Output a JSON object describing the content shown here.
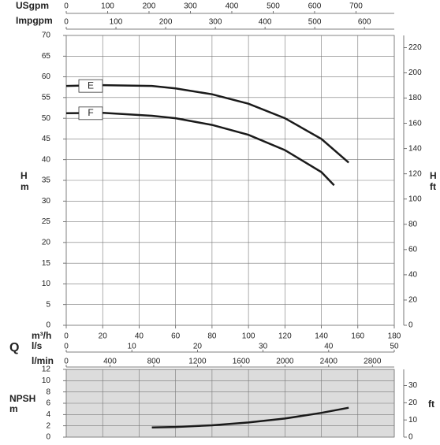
{
  "chart_data": [
    {
      "type": "line",
      "quantity_label": "Q",
      "x_label": "m³/h",
      "ylabel": "H",
      "yunit": "m",
      "y2label": "H",
      "y2unit": "ft",
      "xlim": [
        0,
        180
      ],
      "xticks": [
        0,
        20,
        40,
        60,
        80,
        100,
        120,
        140,
        160,
        180
      ],
      "ylim": [
        0,
        70
      ],
      "yticks": [
        0,
        5,
        10,
        15,
        20,
        25,
        30,
        35,
        40,
        45,
        50,
        55,
        60,
        65,
        70
      ],
      "y2lim": [
        0,
        229.66
      ],
      "y2ticks": [
        0,
        20,
        40,
        60,
        80,
        100,
        120,
        140,
        160,
        180,
        200,
        220
      ],
      "grid": true,
      "extra_x_axes": [
        {
          "label": "USgpm",
          "xlim": [
            0,
            792.5
          ],
          "xticks": [
            0,
            100,
            200,
            300,
            400,
            500,
            600,
            700
          ]
        },
        {
          "label": "Impgpm",
          "xlim": [
            0,
            660
          ],
          "xticks": [
            0,
            100,
            200,
            300,
            400,
            500,
            600
          ]
        },
        {
          "label": "l/s",
          "xlim": [
            0,
            50
          ],
          "xticks": [
            0,
            10,
            20,
            30,
            40,
            50
          ]
        },
        {
          "label": "l/min",
          "xlim": [
            0,
            3000
          ],
          "xticks": [
            0,
            400,
            800,
            1200,
            1600,
            2000,
            2400,
            2800
          ]
        }
      ],
      "series": [
        {
          "name": "E",
          "color": "#1a1a1a",
          "x": [
            0,
            20,
            47,
            60,
            80,
            100,
            120,
            140,
            155
          ],
          "values": [
            57.8,
            58,
            57.8,
            57.2,
            55.8,
            53.5,
            50,
            45,
            39.3
          ]
        },
        {
          "name": "F",
          "color": "#1a1a1a",
          "x": [
            0,
            20,
            47,
            60,
            80,
            100,
            120,
            140,
            147
          ],
          "values": [
            51.2,
            51.3,
            50.6,
            50,
            48.4,
            46,
            42.3,
            37,
            33.8
          ]
        }
      ]
    },
    {
      "type": "line",
      "ylabel": "NPSH",
      "yunit": "m",
      "y2unit": "ft",
      "xlim": [
        0,
        180
      ],
      "xticks": [
        0,
        20,
        40,
        60,
        80,
        100,
        120,
        140,
        160,
        180
      ],
      "ylim": [
        0,
        12
      ],
      "yticks": [
        0,
        2,
        4,
        6,
        8,
        10,
        12
      ],
      "y2lim": [
        0,
        39.37
      ],
      "y2ticks": [
        0,
        10,
        20,
        30
      ],
      "grid": true,
      "background": "#dcdcdc",
      "series": [
        {
          "color": "#1a1a1a",
          "x": [
            47,
            60,
            80,
            100,
            120,
            140,
            155
          ],
          "values": [
            1.7,
            1.8,
            2.1,
            2.6,
            3.3,
            4.3,
            5.2
          ]
        }
      ]
    }
  ]
}
